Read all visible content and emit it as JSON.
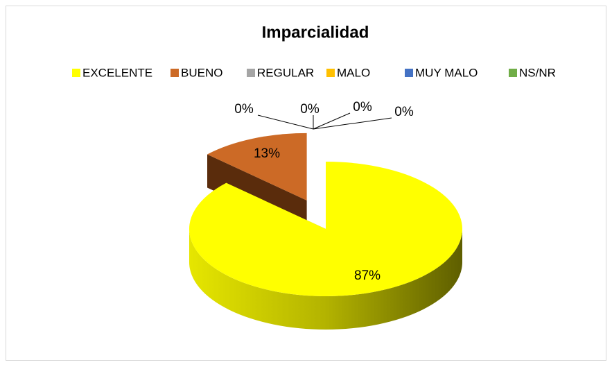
{
  "chart_data": {
    "type": "pie3d",
    "title": "Imparcialidad",
    "categories": [
      "EXCELENTE",
      "BUENO",
      "REGULAR",
      "MALO",
      "MUY MALO",
      "NS/NR"
    ],
    "values": [
      87,
      13,
      0,
      0,
      0,
      0
    ],
    "value_labels": [
      "87%",
      "13%",
      "0%",
      "0%",
      "0%",
      "0%"
    ],
    "colors": [
      "#ffff00",
      "#cc6a26",
      "#a5a5a5",
      "#ffc000",
      "#4472c4",
      "#70ad47"
    ],
    "legend": "top"
  }
}
